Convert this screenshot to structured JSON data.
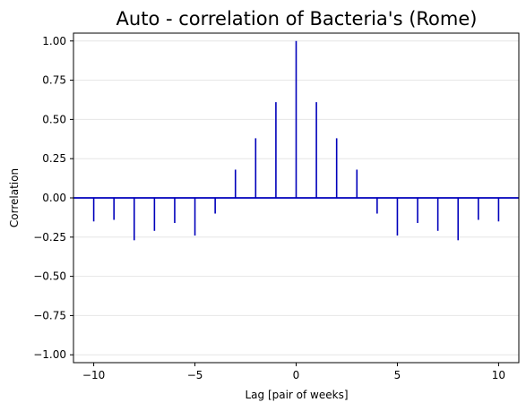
{
  "chart_data": {
    "type": "bar",
    "title": "Auto - correlation of Bacteria's (Rome)",
    "xlabel": "Lag [pair of weeks]",
    "ylabel": "Correlation",
    "xlim": [
      -11,
      11
    ],
    "ylim": [
      -1.05,
      1.05
    ],
    "x_ticks": [
      -10,
      -5,
      0,
      5,
      10
    ],
    "y_ticks": [
      1.0,
      0.75,
      0.5,
      0.25,
      0.0,
      -0.25,
      -0.5,
      -0.75,
      -1.0
    ],
    "x_tick_labels": [
      "−10",
      "−5",
      "0",
      "5",
      "10"
    ],
    "y_tick_labels": [
      "1.00",
      "0.75",
      "0.50",
      "0.25",
      "0.00",
      "−0.25",
      "−0.50",
      "−0.75",
      "−1.00"
    ],
    "grid": "horizontal",
    "zero_line": true,
    "line_color": "#0000bb",
    "lags": [
      -10,
      -9,
      -8,
      -7,
      -6,
      -5,
      -4,
      -3,
      -2,
      -1,
      0,
      1,
      2,
      3,
      4,
      5,
      6,
      7,
      8,
      9,
      10
    ],
    "values": [
      -0.15,
      -0.14,
      -0.27,
      -0.21,
      -0.16,
      -0.24,
      -0.1,
      0.18,
      0.38,
      0.61,
      1.0,
      0.61,
      0.38,
      0.18,
      -0.1,
      -0.24,
      -0.16,
      -0.21,
      -0.27,
      -0.14,
      -0.15
    ]
  }
}
